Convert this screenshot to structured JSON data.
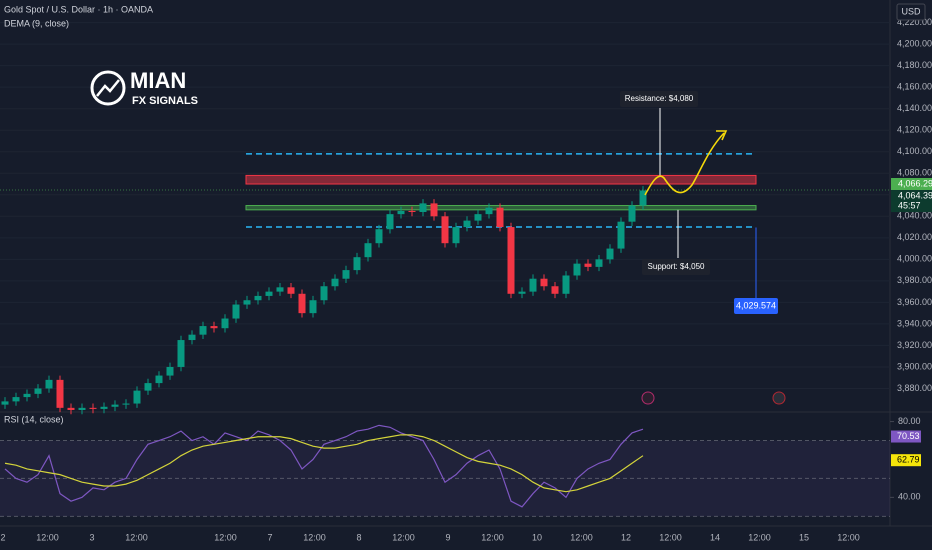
{
  "chart_data": {
    "type": "candlestick",
    "title": "Gold Spot / U.S. Dollar · 1h · OANDA",
    "indicator": "DEMA (9, close)",
    "currency": "USD",
    "logo": {
      "title": "MIAN",
      "subtitle": "FX SIGNALS"
    },
    "up_color": "#089981",
    "down_color": "#f23645",
    "categories": [
      "2",
      "12:00",
      "3",
      "12:00",
      null,
      "12:00",
      "7",
      "12:00",
      "8",
      "12:00",
      "9",
      "12:00",
      "10",
      "12:00",
      "12",
      "12:00",
      "14",
      "12:00",
      "15",
      "12:00"
    ],
    "open": [
      3865,
      3868,
      3872,
      3875,
      3880,
      3888,
      3862,
      3860,
      3862,
      3861,
      3863,
      3865,
      3866,
      3878,
      3885,
      3892,
      3900,
      3925,
      3930,
      3938,
      3936,
      3945,
      3958,
      3962,
      3966,
      3970,
      3974,
      3968,
      3950,
      3962,
      3975,
      3982,
      3990,
      4002,
      4015,
      4028,
      4042,
      4045,
      4044,
      4052,
      4040,
      4015,
      4030,
      4036,
      4042,
      4048,
      4030,
      3968,
      3970,
      3982,
      3975,
      3968,
      3985,
      3996,
      3993,
      4000,
      4010,
      4035,
      4050
    ],
    "high": [
      3872,
      3876,
      3879,
      3884,
      3892,
      3892,
      3866,
      3866,
      3866,
      3867,
      3869,
      3870,
      3882,
      3889,
      3896,
      3904,
      3929,
      3934,
      3942,
      3942,
      3949,
      3962,
      3966,
      3970,
      3974,
      3978,
      3978,
      3972,
      3966,
      3979,
      3986,
      3994,
      4006,
      4019,
      4032,
      4046,
      4049,
      4049,
      4056,
      4056,
      4044,
      4034,
      4040,
      4046,
      4052,
      4052,
      4034,
      3974,
      3986,
      3986,
      3979,
      3989,
      4000,
      4000,
      4004,
      4014,
      4039,
      4054,
      4068
    ],
    "low": [
      3861,
      3864,
      3868,
      3871,
      3876,
      3858,
      3856,
      3856,
      3857,
      3857,
      3859,
      3861,
      3862,
      3874,
      3881,
      3888,
      3896,
      3921,
      3926,
      3932,
      3932,
      3941,
      3954,
      3958,
      3962,
      3966,
      3964,
      3946,
      3946,
      3958,
      3971,
      3978,
      3986,
      3998,
      4011,
      4024,
      4038,
      4040,
      4040,
      4036,
      4011,
      4011,
      4026,
      4032,
      4038,
      4026,
      3964,
      3964,
      3966,
      3971,
      3964,
      3964,
      3981,
      3989,
      3989,
      3996,
      4006,
      4031,
      4046
    ],
    "close": [
      3868,
      3872,
      3875,
      3880,
      3888,
      3862,
      3860,
      3862,
      3861,
      3863,
      3865,
      3866,
      3878,
      3885,
      3892,
      3900,
      3925,
      3930,
      3938,
      3936,
      3945,
      3958,
      3962,
      3966,
      3970,
      3974,
      3968,
      3950,
      3962,
      3975,
      3982,
      3990,
      4002,
      4015,
      4028,
      4042,
      4045,
      4044,
      4052,
      4040,
      4015,
      4030,
      4036,
      4042,
      4048,
      4030,
      3968,
      3970,
      3982,
      3975,
      3968,
      3985,
      3996,
      3993,
      4000,
      4010,
      4035,
      4050,
      4064
    ],
    "ylim": [
      3860,
      4241
    ],
    "yticks": [
      {
        "value": 3880,
        "label": "3,880.000"
      },
      {
        "value": 3900,
        "label": "3,900.000"
      },
      {
        "value": 3920,
        "label": "3,920.000"
      },
      {
        "value": 3940,
        "label": "3,940.000"
      },
      {
        "value": 3960,
        "label": "3,960.000"
      },
      {
        "value": 3980,
        "label": "3,980.000"
      },
      {
        "value": 4000,
        "label": "4,000.000"
      },
      {
        "value": 4020,
        "label": "4,020.000"
      },
      {
        "value": 4040,
        "label": "4,040.000"
      },
      {
        "value": 4060,
        "label": "4,060.000"
      },
      {
        "value": 4080,
        "label": "4,080.000"
      },
      {
        "value": 4100,
        "label": "4,100.000"
      },
      {
        "value": 4120,
        "label": "4,120.000"
      },
      {
        "value": 4140,
        "label": "4,140.000"
      },
      {
        "value": 4160,
        "label": "4,160.000"
      },
      {
        "value": 4180,
        "label": "4,180.000"
      },
      {
        "value": 4200,
        "label": "4,200.000"
      },
      {
        "value": 4220,
        "label": "4,220.000"
      }
    ],
    "resistance_zone": [
      4070,
      4078
    ],
    "support_zone": [
      4046,
      4050
    ],
    "upper_dashed": 4098,
    "lower_dashed": 4030,
    "resistance_label": "Resistance: $4,080",
    "support_label": "Support: $4,050",
    "target_tag": {
      "value": 4029.574,
      "label": "4,029.574"
    },
    "price_tags": [
      {
        "value": 4066.295,
        "label": "4,066.295"
      },
      {
        "value": 4064.39,
        "label": "4,064.390"
      }
    ],
    "countdown": "45:57",
    "rsi": {
      "title": "RSI (14, close)",
      "values": [
        55,
        50,
        48,
        52,
        62,
        42,
        38,
        40,
        45,
        44,
        48,
        50,
        60,
        68,
        70,
        72,
        75,
        70,
        72,
        68,
        74,
        72,
        70,
        75,
        73,
        70,
        65,
        55,
        60,
        68,
        70,
        72,
        75,
        76,
        78,
        77,
        74,
        72,
        70,
        60,
        48,
        52,
        58,
        62,
        65,
        55,
        38,
        35,
        42,
        48,
        45,
        40,
        50,
        55,
        58,
        60,
        68,
        74,
        76
      ],
      "ma": [
        58,
        57,
        55,
        54,
        53,
        52,
        50,
        48,
        47,
        46,
        46,
        47,
        49,
        52,
        55,
        58,
        62,
        65,
        67,
        68,
        69,
        70,
        71,
        72,
        72,
        72,
        71,
        69,
        67,
        66,
        66,
        67,
        68,
        70,
        71,
        72,
        73,
        73,
        72,
        70,
        67,
        64,
        61,
        59,
        58,
        57,
        55,
        52,
        48,
        45,
        44,
        43,
        44,
        46,
        48,
        50,
        54,
        58,
        62
      ],
      "ylim": [
        27,
        84
      ],
      "yticks": [
        {
          "value": 80,
          "label": "80.00"
        },
        {
          "value": 40,
          "label": "40.00"
        }
      ],
      "bands": [
        70,
        50,
        30
      ],
      "tags": [
        {
          "value": 70.53,
          "label": "70.53"
        },
        {
          "value": 62.79,
          "label": "62.79"
        }
      ]
    }
  }
}
